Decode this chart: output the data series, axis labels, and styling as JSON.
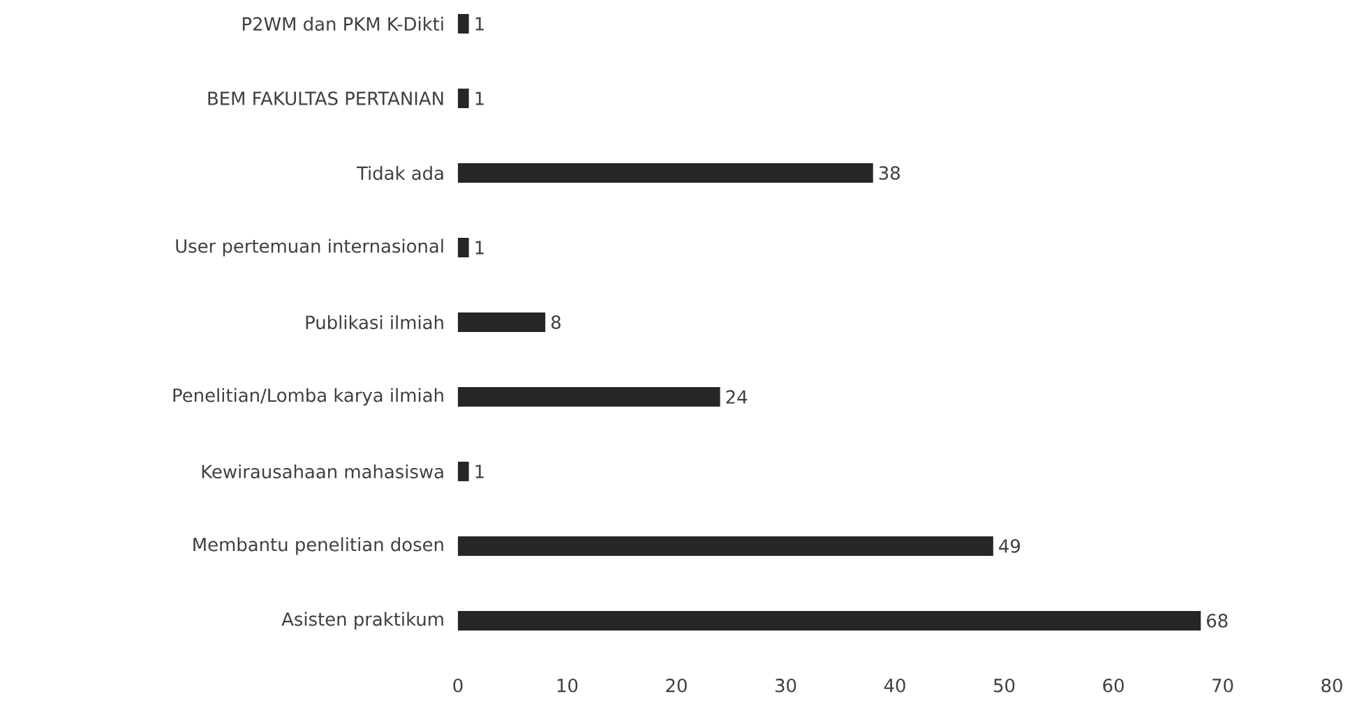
{
  "chart_data": {
    "type": "bar",
    "orientation": "horizontal",
    "categories": [
      "P2WM dan PKM K-Dikti",
      "BEM FAKULTAS PERTANIAN",
      "Tidak ada",
      "User pertemuan internasional",
      "Publikasi ilmiah",
      "Penelitian/Lomba karya ilmiah",
      "Kewirausahaan mahasiswa",
      "Membantu penelitian dosen",
      "Asisten praktikum"
    ],
    "values": [
      1,
      1,
      38,
      1,
      8,
      24,
      1,
      49,
      68
    ],
    "color": "#262626",
    "xlim": [
      0,
      80
    ],
    "xticks": [
      0,
      10,
      20,
      30,
      40,
      50,
      60,
      70,
      80
    ],
    "data_labels": true
  }
}
